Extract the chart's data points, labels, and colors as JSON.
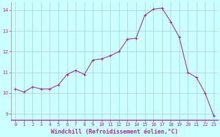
{
  "x": [
    0,
    1,
    2,
    3,
    4,
    5,
    6,
    7,
    8,
    9,
    10,
    11,
    12,
    13,
    14,
    15,
    16,
    17,
    18,
    19,
    20,
    21,
    22,
    23
  ],
  "y": [
    10.2,
    10.05,
    10.3,
    10.2,
    10.2,
    10.4,
    10.9,
    11.1,
    10.9,
    11.6,
    11.65,
    11.8,
    12.0,
    12.6,
    12.65,
    13.75,
    14.05,
    14.1,
    13.45,
    12.7,
    11.0,
    10.75,
    10.0,
    8.9
  ],
  "line_color": "#993399",
  "marker": "+",
  "marker_size": 3,
  "background_color": "#ccffff",
  "grid_color": "#aacccc",
  "xlabel": "Windchill (Refroidissement éolien,°C)",
  "xlabel_color": "#993399",
  "xlim": [
    -0.5,
    23.5
  ],
  "ylim": [
    8.7,
    14.4
  ],
  "yticks": [
    9,
    10,
    11,
    12,
    13,
    14
  ],
  "xticks": [
    0,
    1,
    2,
    3,
    4,
    5,
    6,
    7,
    8,
    9,
    10,
    11,
    12,
    13,
    14,
    15,
    16,
    17,
    18,
    19,
    20,
    21,
    22,
    23
  ],
  "tick_color": "#993399",
  "tick_fontsize": 5,
  "xlabel_fontsize": 6,
  "linewidth": 0.8,
  "spine_color": "#993399",
  "axis_line_color": "#888888"
}
